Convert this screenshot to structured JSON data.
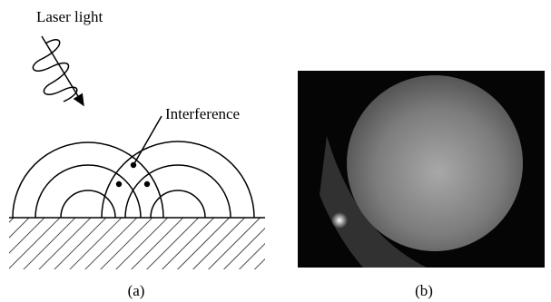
{
  "labels": {
    "laser": "Laser light",
    "interference": "Interference"
  },
  "captions": {
    "a": "(a)",
    "b": "(b)"
  }
}
